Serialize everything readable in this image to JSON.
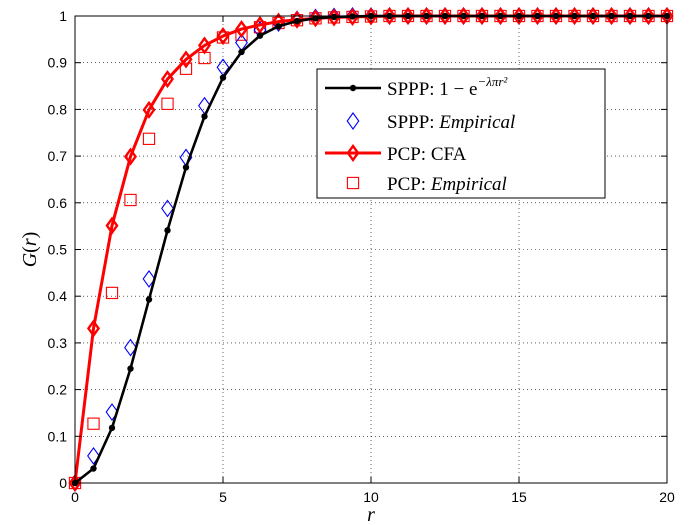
{
  "chart_data": {
    "type": "line",
    "xlabel": "r",
    "ylabel": "G(r)",
    "xlim": [
      0,
      20
    ],
    "ylim": [
      0,
      1
    ],
    "grid": true,
    "legend_position": "top-right",
    "x_ticks": [
      "0",
      "5",
      "10",
      "15",
      "20"
    ],
    "y_ticks": [
      "0",
      "0.1",
      "0.2",
      "0.3",
      "0.4",
      "0.5",
      "0.6",
      "0.7",
      "0.8",
      "0.9",
      "1"
    ],
    "x": [
      0,
      0.625,
      1.25,
      1.875,
      2.5,
      3.125,
      3.75,
      4.375,
      5.0,
      5.625,
      6.25,
      6.875,
      7.5,
      8.125,
      8.75,
      9.375,
      10.0,
      10.625,
      11.25,
      11.875,
      12.5,
      13.125,
      13.75,
      14.375,
      15.0,
      15.625,
      16.25,
      16.875,
      17.5,
      18.125,
      18.75,
      19.375,
      20.0
    ],
    "series": [
      {
        "name": "SPPP: 1 − e^{−λπr²}",
        "legend_main": "SPPP: 1 − e",
        "legend_sup": "−λπr²",
        "color": "#000000",
        "style": "line-dot",
        "values": [
          0,
          0.031,
          0.118,
          0.245,
          0.393,
          0.541,
          0.676,
          0.785,
          0.868,
          0.923,
          0.958,
          0.978,
          0.989,
          0.995,
          0.998,
          0.999,
          1.0,
          1.0,
          1.0,
          1.0,
          1.0,
          1.0,
          1.0,
          1.0,
          1.0,
          1.0,
          1.0,
          1.0,
          1.0,
          1.0,
          1.0,
          1.0,
          1.0
        ]
      },
      {
        "name": "SPPP: Empirical",
        "legend_main": "SPPP: ",
        "legend_italic": "Empirical",
        "color": "#0000ff",
        "style": "diamond",
        "values": [
          0,
          0.058,
          0.152,
          0.29,
          0.437,
          0.588,
          0.697,
          0.808,
          0.89,
          0.943,
          0.97,
          0.985,
          0.993,
          0.997,
          0.999,
          1.0,
          1.0,
          1.0,
          1.0,
          1.0,
          1.0,
          1.0,
          1.0,
          1.0,
          1.0,
          1.0,
          1.0,
          1.0,
          1.0,
          1.0,
          1.0,
          1.0,
          1.0
        ]
      },
      {
        "name": "PCP: CFA",
        "legend_main": "PCP: CFA",
        "color": "#ff0000",
        "style": "line-diamond",
        "values": [
          0,
          0.331,
          0.551,
          0.699,
          0.799,
          0.865,
          0.907,
          0.937,
          0.957,
          0.972,
          0.981,
          0.988,
          0.992,
          0.995,
          0.997,
          0.998,
          0.999,
          1.0,
          1.0,
          1.0,
          1.0,
          1.0,
          1.0,
          1.0,
          1.0,
          1.0,
          1.0,
          1.0,
          1.0,
          1.0,
          1.0,
          1.0,
          1.0
        ]
      },
      {
        "name": "PCP: Empirical",
        "legend_main": "PCP: ",
        "legend_italic": "Empirical",
        "color": "#ff0000",
        "style": "square",
        "values": [
          0,
          0.127,
          0.407,
          0.606,
          0.737,
          0.812,
          0.887,
          0.91,
          0.954,
          0.96,
          0.976,
          0.985,
          0.991,
          0.995,
          0.997,
          0.998,
          0.999,
          1.0,
          1.0,
          1.0,
          1.0,
          1.0,
          1.0,
          1.0,
          1.0,
          1.0,
          1.0,
          1.0,
          1.0,
          1.0,
          1.0,
          1.0,
          1.0
        ]
      }
    ]
  }
}
